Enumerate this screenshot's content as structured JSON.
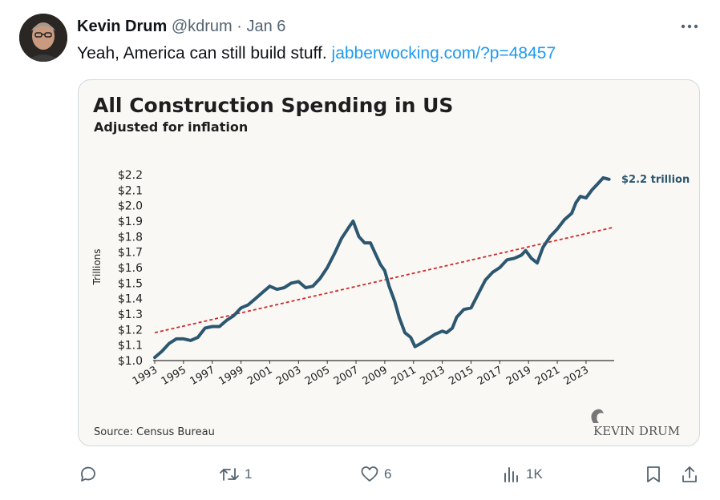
{
  "tweet": {
    "author_name": "Kevin Drum",
    "handle": "@kdrum",
    "separator": "·",
    "date": "Jan 6",
    "more_icon": "more-horizontal-icon",
    "text": "Yeah, America can still build stuff.",
    "link": "jabberwocking.com/?p=48457"
  },
  "actions": {
    "reply": {
      "icon": "reply-icon",
      "count": ""
    },
    "retweet": {
      "icon": "retweet-icon",
      "count": "1"
    },
    "like": {
      "icon": "heart-icon",
      "count": "6"
    },
    "views": {
      "icon": "views-icon",
      "count": "1K"
    },
    "bookmark": {
      "icon": "bookmark-icon"
    },
    "share": {
      "icon": "share-icon"
    }
  },
  "chart_data": {
    "type": "line",
    "title": "All Construction Spending in US",
    "subtitle": "Adjusted for inflation",
    "ylabel": "Trillions",
    "source": "Source: Census Bureau",
    "brand": "KEVIN DRUM",
    "end_label": "$2.2 trillion",
    "ylim": [
      1.0,
      2.2
    ],
    "xlim": [
      1993,
      2024.9
    ],
    "yticks": [
      1.0,
      1.1,
      1.2,
      1.3,
      1.4,
      1.5,
      1.6,
      1.7,
      1.8,
      1.9,
      2.0,
      2.1,
      2.2
    ],
    "ytick_labels": [
      "$1.0",
      "$1.1",
      "$1.2",
      "$1.3",
      "$1.4",
      "$1.5",
      "$1.6",
      "$1.7",
      "$1.8",
      "$1.9",
      "$2.0",
      "$2.1",
      "$2.2"
    ],
    "xticks": [
      "1993",
      "1995",
      "1997",
      "1999",
      "2001",
      "2003",
      "2005",
      "2007",
      "2009",
      "2011",
      "2013",
      "2015",
      "2017",
      "2019",
      "2021",
      "2023"
    ],
    "line_color": "#2c5770",
    "trend_color": "#cc2a2a",
    "series": [
      {
        "values": [
          [
            1993.0,
            1.02
          ],
          [
            1993.5,
            1.06
          ],
          [
            1994.0,
            1.11
          ],
          [
            1994.5,
            1.14
          ],
          [
            1995.0,
            1.14
          ],
          [
            1995.5,
            1.13
          ],
          [
            1996.0,
            1.15
          ],
          [
            1996.5,
            1.21
          ],
          [
            1997.0,
            1.22
          ],
          [
            1997.5,
            1.22
          ],
          [
            1998.0,
            1.26
          ],
          [
            1998.5,
            1.29
          ],
          [
            1999.0,
            1.34
          ],
          [
            1999.5,
            1.36
          ],
          [
            2000.0,
            1.4
          ],
          [
            2000.5,
            1.44
          ],
          [
            2001.0,
            1.48
          ],
          [
            2001.5,
            1.46
          ],
          [
            2002.0,
            1.47
          ],
          [
            2002.5,
            1.5
          ],
          [
            2003.0,
            1.51
          ],
          [
            2003.5,
            1.47
          ],
          [
            2004.0,
            1.48
          ],
          [
            2004.5,
            1.53
          ],
          [
            2005.0,
            1.6
          ],
          [
            2005.5,
            1.69
          ],
          [
            2006.0,
            1.79
          ],
          [
            2006.5,
            1.86
          ],
          [
            2006.8,
            1.9
          ],
          [
            2007.2,
            1.8
          ],
          [
            2007.6,
            1.76
          ],
          [
            2008.0,
            1.76
          ],
          [
            2008.3,
            1.7
          ],
          [
            2008.7,
            1.62
          ],
          [
            2009.0,
            1.58
          ],
          [
            2009.3,
            1.48
          ],
          [
            2009.7,
            1.38
          ],
          [
            2010.0,
            1.28
          ],
          [
            2010.4,
            1.18
          ],
          [
            2010.8,
            1.15
          ],
          [
            2011.1,
            1.09
          ],
          [
            2011.5,
            1.11
          ],
          [
            2012.0,
            1.14
          ],
          [
            2012.5,
            1.17
          ],
          [
            2013.0,
            1.19
          ],
          [
            2013.3,
            1.18
          ],
          [
            2013.7,
            1.21
          ],
          [
            2014.0,
            1.28
          ],
          [
            2014.5,
            1.33
          ],
          [
            2015.0,
            1.34
          ],
          [
            2015.5,
            1.43
          ],
          [
            2016.0,
            1.52
          ],
          [
            2016.5,
            1.57
          ],
          [
            2017.0,
            1.6
          ],
          [
            2017.5,
            1.65
          ],
          [
            2018.0,
            1.66
          ],
          [
            2018.5,
            1.68
          ],
          [
            2018.8,
            1.71
          ],
          [
            2019.2,
            1.66
          ],
          [
            2019.6,
            1.63
          ],
          [
            2020.0,
            1.73
          ],
          [
            2020.5,
            1.8
          ],
          [
            2021.0,
            1.85
          ],
          [
            2021.5,
            1.91
          ],
          [
            2022.0,
            1.95
          ],
          [
            2022.3,
            2.02
          ],
          [
            2022.6,
            2.06
          ],
          [
            2023.0,
            2.05
          ],
          [
            2023.4,
            2.1
          ],
          [
            2023.8,
            2.14
          ],
          [
            2024.2,
            2.18
          ],
          [
            2024.6,
            2.17
          ]
        ]
      },
      {
        "values": [
          [
            1993.0,
            1.18
          ],
          [
            2024.9,
            1.86
          ]
        ]
      }
    ]
  }
}
